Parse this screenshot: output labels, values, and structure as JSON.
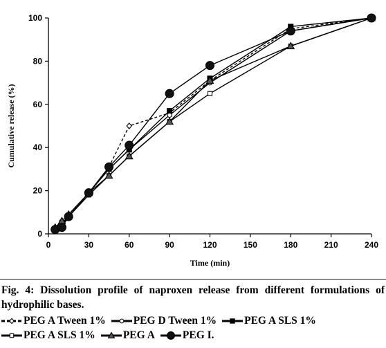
{
  "chart_data": {
    "type": "line",
    "xlabel": "Time (min)",
    "ylabel": "Cumulative release (%)",
    "xlim": [
      0,
      240
    ],
    "ylim": [
      0,
      100
    ],
    "xticks": [
      0,
      30,
      60,
      90,
      120,
      150,
      180,
      210,
      240
    ],
    "yticks": [
      0,
      20,
      40,
      60,
      80,
      100
    ],
    "grid": false,
    "legend_position": "below",
    "series": [
      {
        "name": "PEG A Tween 1%",
        "marker": "diamond",
        "dash": "4,3",
        "color": "#000000",
        "x": [
          5,
          10,
          15,
          30,
          45,
          60,
          90,
          120,
          180,
          240
        ],
        "y": [
          2,
          6,
          9,
          19,
          31,
          50,
          56,
          71,
          95,
          100
        ]
      },
      {
        "name": "PEG D Tween 1%",
        "marker": "circle-open",
        "dash": "",
        "color": "#000000",
        "x": [
          5,
          10,
          15,
          30,
          45,
          60,
          90,
          120,
          180,
          240
        ],
        "y": [
          3,
          5,
          8,
          19,
          30,
          39,
          55,
          70,
          94,
          100
        ]
      },
      {
        "name": "PEG A SLS 1%",
        "marker": "square",
        "dash": "",
        "color": "#000000",
        "x": [
          5,
          10,
          15,
          30,
          45,
          60,
          90,
          120,
          180,
          240
        ],
        "y": [
          2,
          5,
          8,
          19,
          30,
          39,
          57,
          72,
          96,
          100
        ]
      },
      {
        "name": "PEG A SLS 1%",
        "marker": "square-open",
        "dash": "",
        "color": "#000000",
        "x": [
          5,
          10,
          15,
          30,
          45,
          60,
          90,
          120,
          180,
          240
        ],
        "y": [
          2,
          4,
          8,
          18,
          27,
          36,
          52,
          65,
          87,
          100
        ]
      },
      {
        "name": "PEG A",
        "marker": "triangle",
        "dash": "",
        "color": "#000000",
        "x": [
          5,
          10,
          15,
          30,
          45,
          60,
          90,
          120,
          180,
          240
        ],
        "y": [
          3,
          6,
          9,
          19,
          27,
          36,
          52,
          71,
          87,
          100
        ]
      },
      {
        "name": "PEG I.",
        "marker": "circle",
        "dash": "",
        "color": "#000000",
        "x": [
          5,
          10,
          15,
          30,
          45,
          60,
          90,
          120,
          180,
          240
        ],
        "y": [
          2,
          3,
          8,
          19,
          31,
          41,
          65,
          78,
          94,
          100
        ]
      }
    ]
  },
  "caption": {
    "text": "Fig. 4: Dissolution profile of naproxen release from different formulations of hydrophilic bases."
  }
}
